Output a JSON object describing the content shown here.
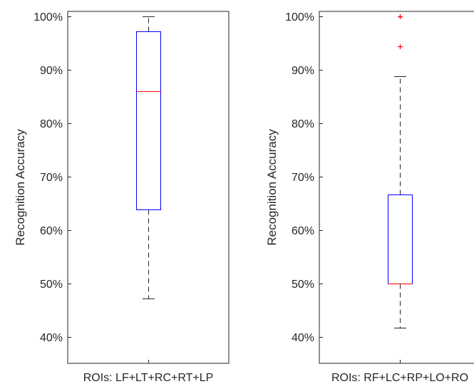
{
  "chart_data": [
    {
      "type": "box",
      "ylabel": "Recognition Accuracy",
      "xlabel": "",
      "categories": [
        "ROIs: LF+LT+RC+RT+LP"
      ],
      "ylim": [
        0.35,
        1.01
      ],
      "yticks": [
        0.4,
        0.5,
        0.6,
        0.7,
        0.8,
        0.9,
        1.0
      ],
      "ytick_labels": [
        "40%",
        "50%",
        "60%",
        "70%",
        "80%",
        "90%",
        "100%"
      ],
      "grid": false,
      "box": {
        "whisker_low": 0.472,
        "q1": 0.639,
        "median": 0.861,
        "q3": 0.972,
        "whisker_high": 1.0,
        "outliers": []
      },
      "colors": {
        "box": "#0000ff",
        "median": "#ff0000",
        "whisker": "#262626",
        "outlier": "#ff0000"
      }
    },
    {
      "type": "box",
      "ylabel": "Recognition Accuracy",
      "xlabel": "",
      "categories": [
        "ROIs: RF+LC+RP+LO+RO"
      ],
      "ylim": [
        0.35,
        1.01
      ],
      "yticks": [
        0.4,
        0.5,
        0.6,
        0.7,
        0.8,
        0.9,
        1.0
      ],
      "ytick_labels": [
        "40%",
        "50%",
        "60%",
        "70%",
        "80%",
        "90%",
        "100%"
      ],
      "grid": false,
      "box": {
        "whisker_low": 0.417,
        "q1": 0.5,
        "median": 0.5,
        "q3": 0.667,
        "whisker_high": 0.889,
        "outliers": [
          0.944,
          1.0,
          1.0
        ]
      },
      "colors": {
        "box": "#0000ff",
        "median": "#ff0000",
        "whisker": "#262626",
        "outlier": "#ff0000"
      }
    }
  ]
}
